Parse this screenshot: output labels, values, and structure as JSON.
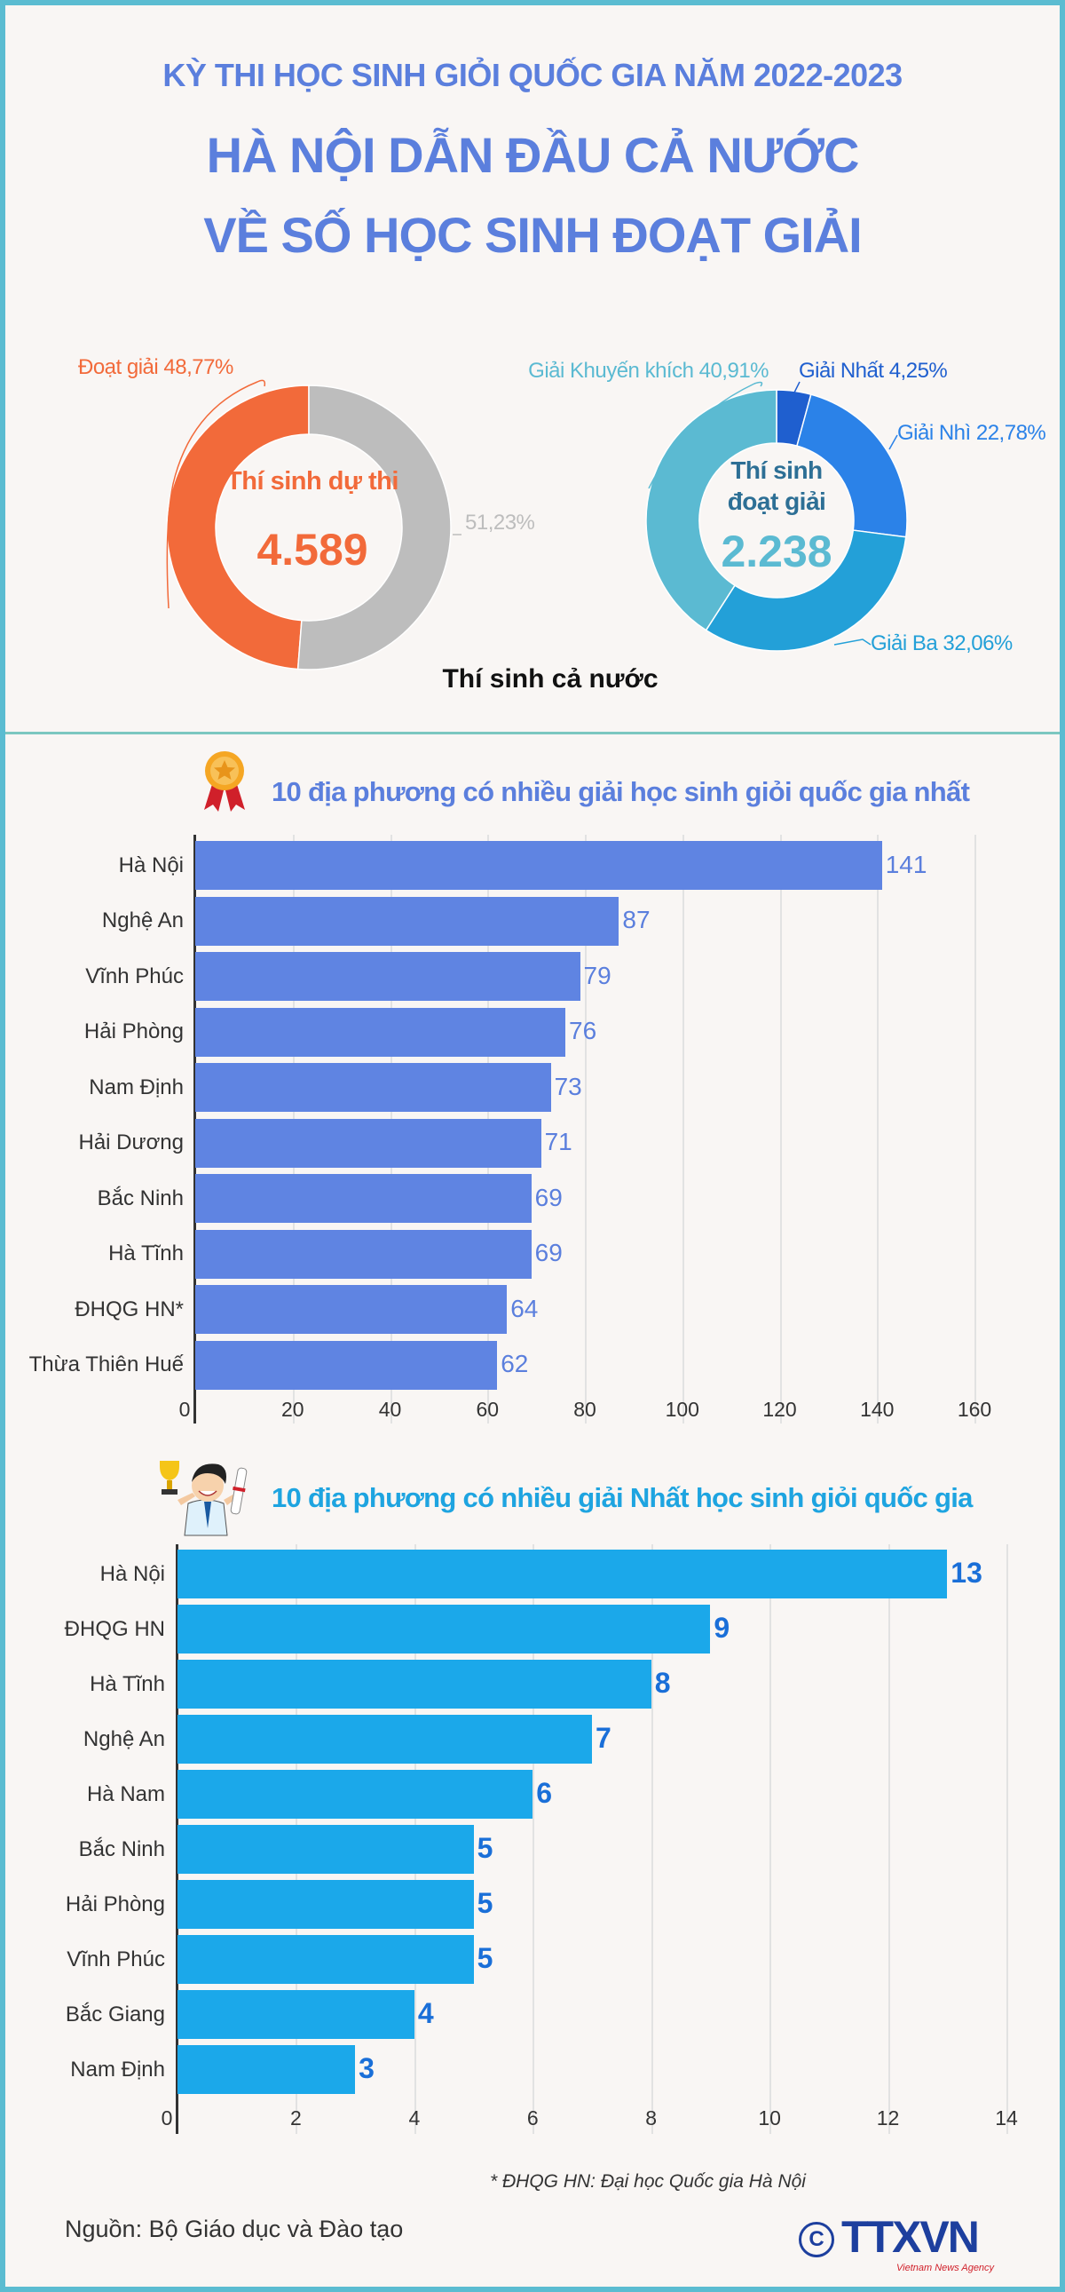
{
  "header": {
    "kicker": "KỲ THI HỌC SINH GIỎI QUỐC GIA NĂM 2022-2023",
    "title_line1": "HÀ NỘI DẪN ĐẦU CẢ NƯỚC",
    "title_line2": "VỀ SỐ HỌC SINH ĐOẠT GIẢI"
  },
  "colors": {
    "title": "#5b7fdd",
    "border": "#5bbcd1",
    "chart1_bar": "#5f84e2",
    "chart2_bar": "#1ba8ea",
    "chart2_value": "#1a6fd8"
  },
  "chart_data": [
    {
      "type": "pie",
      "donut": true,
      "center_label": "Thí sinh dự thi",
      "center_value": "4.589",
      "caption": "Thí sinh cả nước",
      "slices": [
        {
          "label": "Đoạt giải 48,77%",
          "value": 48.77,
          "color": "#f26a3a"
        },
        {
          "label": "51,23%",
          "value": 51.23,
          "color": "#bdbdbd"
        }
      ]
    },
    {
      "type": "pie",
      "donut": true,
      "center_label_line1": "Thí sinh",
      "center_label_line2": "đoạt giải",
      "center_value": "2.238",
      "slices": [
        {
          "label": "Giải Nhất 4,25%",
          "value": 4.25,
          "color": "#1f5fcf"
        },
        {
          "label": "Giải Nhì 22,78%",
          "value": 22.78,
          "color": "#2b82e8"
        },
        {
          "label": "Giải Ba 32,06%",
          "value": 32.06,
          "color": "#23a0d8"
        },
        {
          "label": "Giải Khuyến khích 40,91%",
          "value": 40.91,
          "color": "#5bbad2"
        }
      ]
    },
    {
      "type": "bar",
      "orientation": "horizontal",
      "title": "10 địa phương có nhiều giải học sinh giỏi quốc gia nhất",
      "icon": "medal-icon",
      "categories": [
        "Hà Nội",
        "Nghệ An",
        "Vĩnh Phúc",
        "Hải Phòng",
        "Nam Định",
        "Hải Dương",
        "Bắc Ninh",
        "Hà Tĩnh",
        "ĐHQG HN*",
        "Thừa Thiên Huế"
      ],
      "values": [
        141,
        87,
        79,
        76,
        73,
        71,
        69,
        69,
        64,
        62
      ],
      "xlim": [
        0,
        160
      ],
      "xticks": [
        "0",
        "20",
        "40",
        "60",
        "80",
        "100",
        "120",
        "140",
        "160"
      ],
      "grid": true
    },
    {
      "type": "bar",
      "orientation": "horizontal",
      "title": "10 địa phương có nhiều giải Nhất học sinh giỏi quốc gia",
      "icon": "student-trophy-icon",
      "categories": [
        "Hà Nội",
        "ĐHQG HN",
        "Hà Tĩnh",
        "Nghệ An",
        "Hà Nam",
        "Bắc Ninh",
        "Hải Phòng",
        "Vĩnh Phúc",
        "Bắc Giang",
        "Nam Định"
      ],
      "values": [
        13,
        9,
        8,
        7,
        6,
        5,
        5,
        5,
        4,
        3
      ],
      "xlim": [
        0,
        14
      ],
      "xticks": [
        "0",
        "2",
        "4",
        "6",
        "8",
        "10",
        "12",
        "14"
      ],
      "grid": true
    }
  ],
  "footer": {
    "footnote": "* ĐHQG HN: Đại học Quốc gia Hà Nội",
    "source": "Nguồn: Bộ Giáo dục và Đào tạo",
    "logo_text": "TTXVN",
    "logo_subtext": "Vietnam News Agency"
  }
}
